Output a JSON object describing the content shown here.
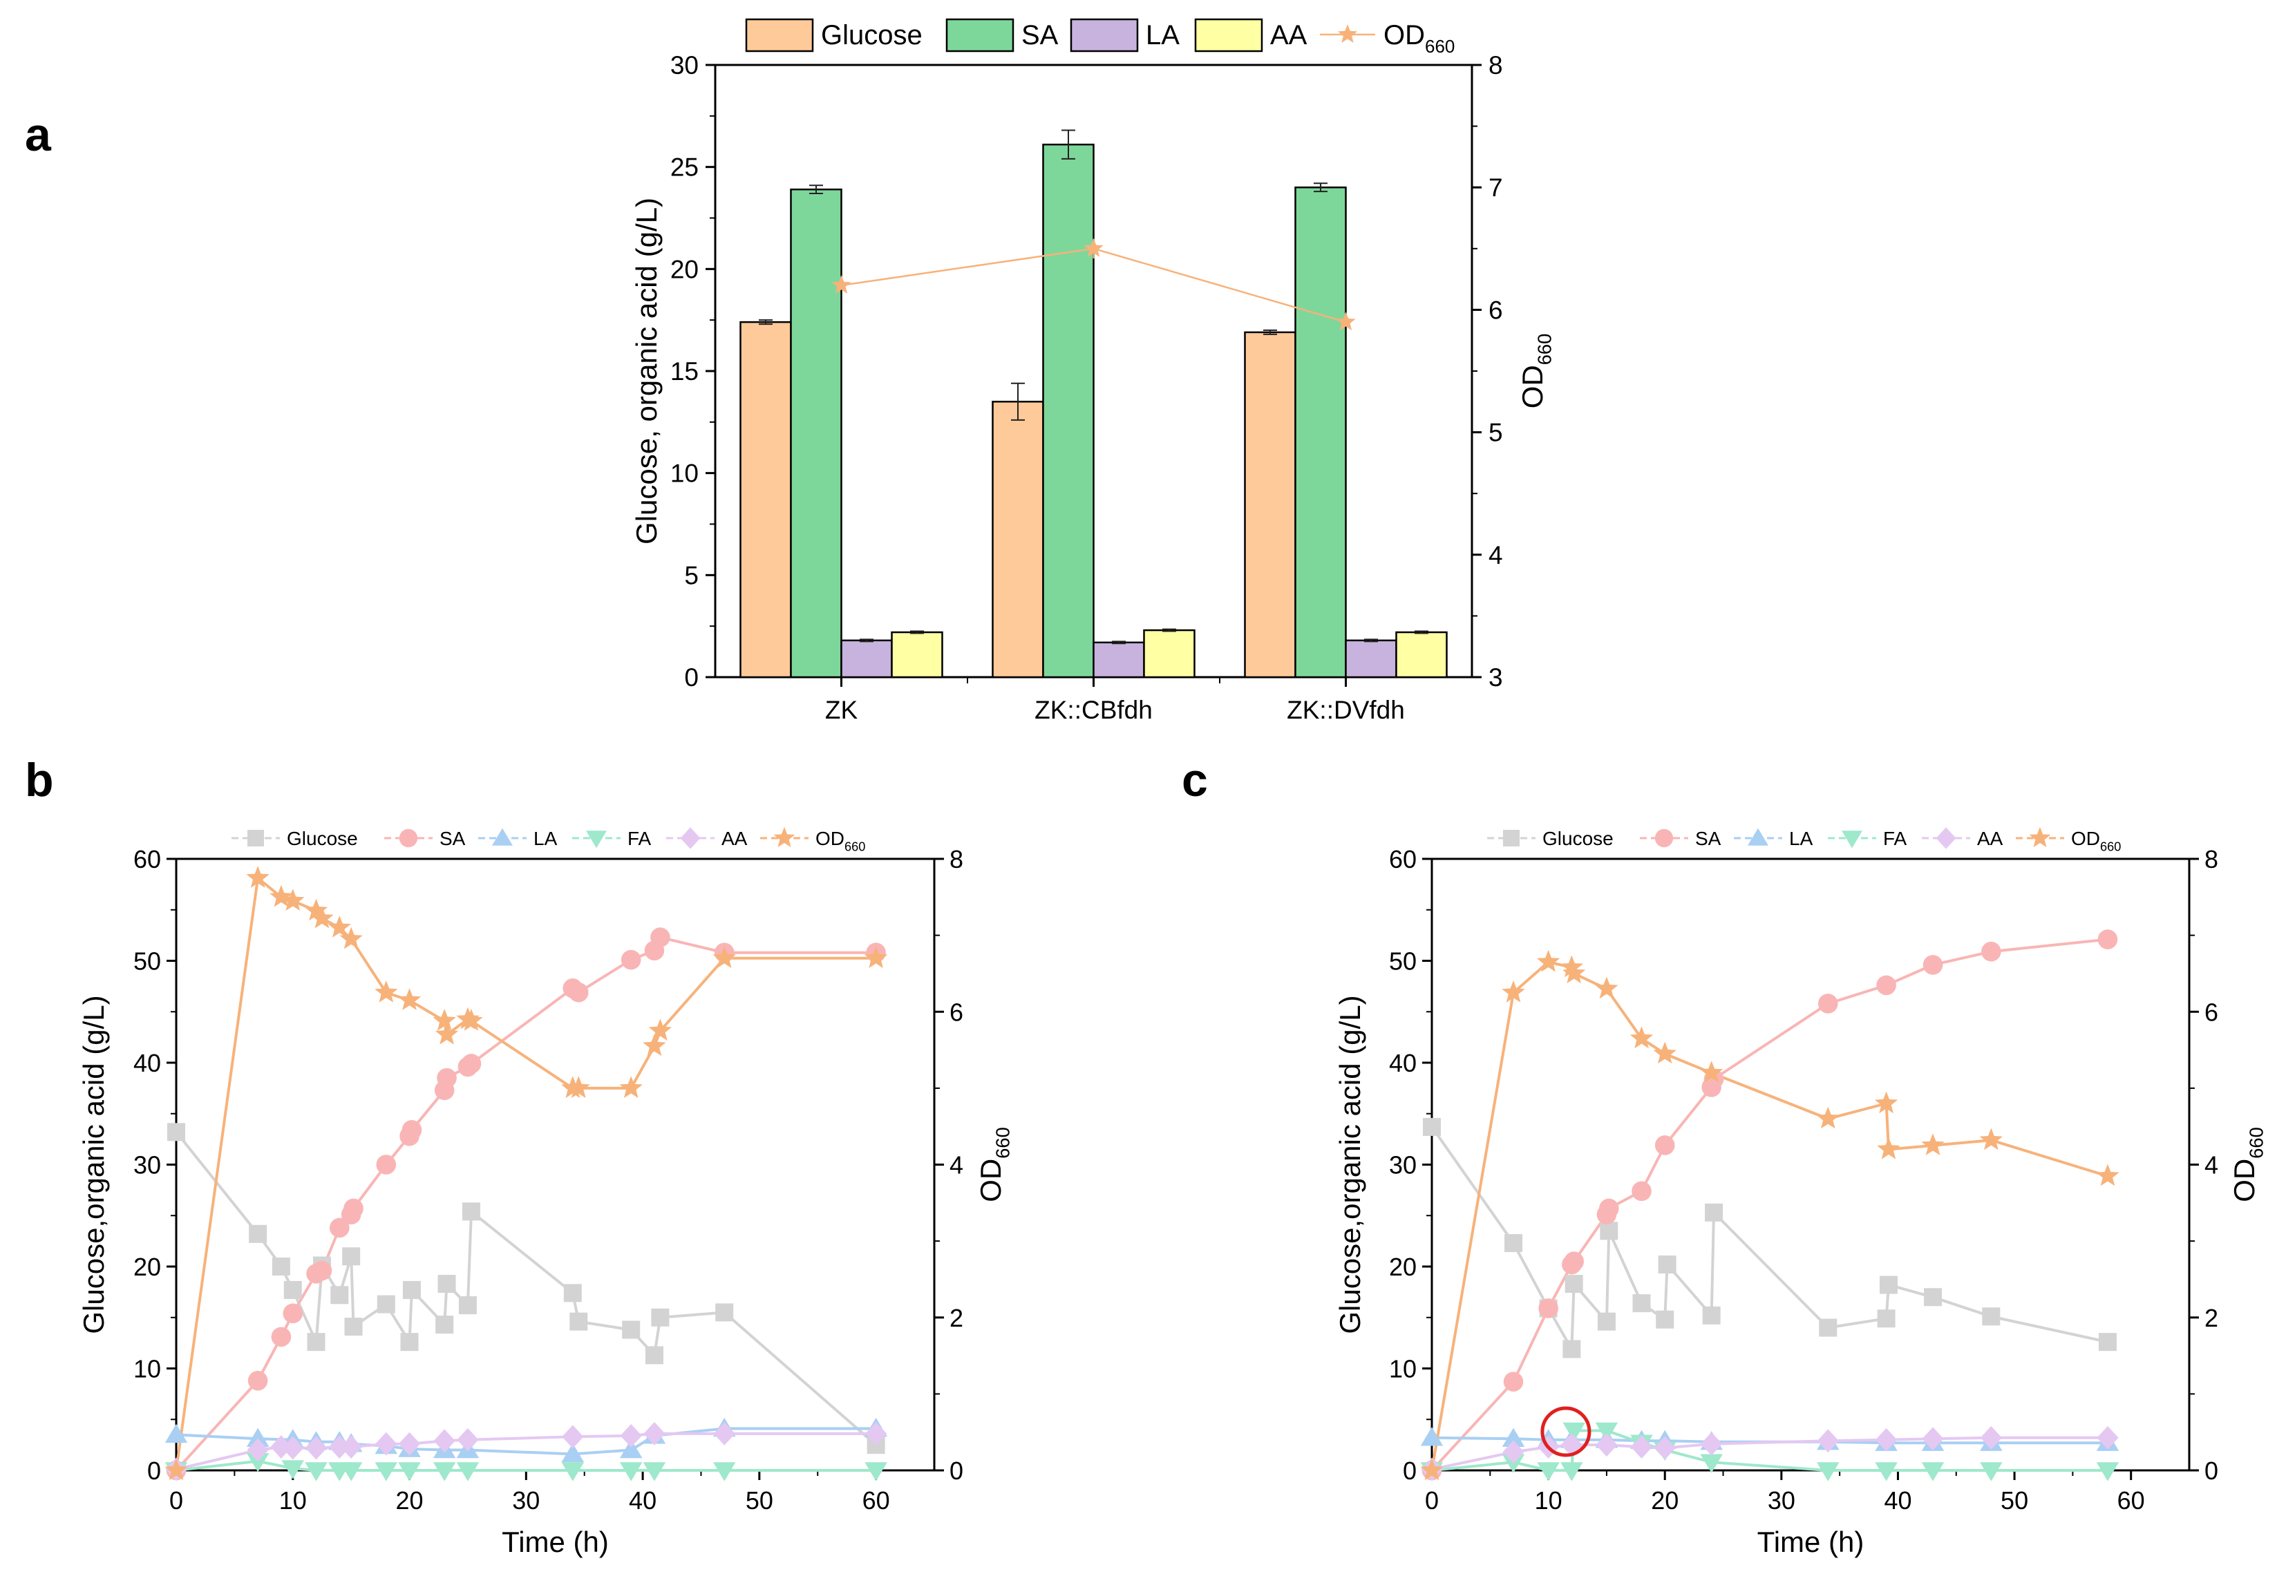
{
  "panels": [
    {
      "letter": "a"
    },
    {
      "letter": "b"
    },
    {
      "letter": "c"
    }
  ],
  "chart_data": [
    {
      "panel": "a",
      "type": "bar",
      "categories": [
        "ZK",
        "ZK::CBfdh",
        "ZK::DVfdh"
      ],
      "series": [
        {
          "name": "Glucose",
          "color": "#FFCA99",
          "values": [
            17.4,
            13.5,
            16.9
          ],
          "errors": [
            0.1,
            0.9,
            0.1
          ]
        },
        {
          "name": "SA",
          "color": "#7ED79A",
          "values": [
            23.9,
            26.1,
            24.0
          ],
          "errors": [
            0.2,
            0.7,
            0.2
          ]
        },
        {
          "name": "LA",
          "color": "#C7B3DD",
          "values": [
            1.8,
            1.7,
            1.8
          ],
          "errors": [
            0.05,
            0.05,
            0.05
          ]
        },
        {
          "name": "AA",
          "color": "#FFFFA3",
          "values": [
            2.2,
            2.3,
            2.2
          ],
          "errors": [
            0.05,
            0.05,
            0.05
          ]
        }
      ],
      "line_series": {
        "name": "OD660",
        "name_main": "OD",
        "name_sub": "660",
        "color": "#F7B27A",
        "values": [
          6.2,
          6.5,
          5.9
        ],
        "errors": [
          0.0,
          0.08,
          0.02
        ]
      },
      "ylabel": "Glucose, organic acid (g/L)",
      "y2label_main": "OD",
      "y2label_sub": "660",
      "ylim": [
        0,
        30
      ],
      "yticks": [
        "0",
        "5",
        "10",
        "15",
        "20",
        "25",
        "30"
      ],
      "y2lim": [
        3,
        8
      ],
      "y2ticks": [
        "3",
        "4",
        "5",
        "6",
        "7",
        "8"
      ],
      "legend": [
        "Glucose",
        "SA",
        "LA",
        "AA",
        "OD660"
      ],
      "legend_position": "top"
    },
    {
      "panel": "b",
      "type": "line",
      "xlabel": "Time (h)",
      "ylabel": "Glucose,organic acid (g/L)",
      "y2label_main": "OD",
      "y2label_sub": "660",
      "xlim": [
        0,
        65
      ],
      "xticks": [
        "0",
        "10",
        "20",
        "30",
        "40",
        "50",
        "60"
      ],
      "ylim": [
        0,
        60
      ],
      "yticks": [
        "0",
        "10",
        "20",
        "30",
        "40",
        "50",
        "60"
      ],
      "y2lim": [
        0,
        8
      ],
      "y2ticks": [
        "0",
        "2",
        "4",
        "6",
        "8"
      ],
      "legend_position": "top",
      "series": [
        {
          "name": "Glucose",
          "marker": "square",
          "color": "#D3D3D3",
          "x": [
            0,
            7,
            9,
            10,
            12,
            12.5,
            14,
            15,
            15.2,
            18,
            20,
            20.2,
            23,
            23.2,
            25,
            25.3,
            34,
            34.5,
            39,
            41,
            41.5,
            47,
            60
          ],
          "y": [
            33.2,
            23.2,
            20.0,
            17.7,
            12.6,
            20.1,
            17.2,
            21.0,
            14.1,
            16.3,
            12.6,
            17.7,
            14.3,
            18.3,
            16.2,
            25.4,
            17.4,
            14.6,
            13.8,
            11.3,
            15.0,
            15.5,
            2.5
          ]
        },
        {
          "name": "SA",
          "marker": "circle",
          "color": "#F9B5B5",
          "x": [
            0,
            7,
            9,
            10,
            12,
            12.5,
            14,
            15,
            15.2,
            18,
            20,
            20.2,
            23,
            23.2,
            25,
            25.3,
            34,
            34.5,
            39,
            41,
            41.5,
            47,
            60
          ],
          "y": [
            0,
            8.8,
            13.1,
            15.4,
            19.3,
            19.6,
            23.8,
            25.1,
            25.7,
            30.0,
            32.8,
            33.4,
            37.3,
            38.5,
            39.6,
            39.9,
            47.3,
            46.9,
            50.1,
            51.0,
            52.3,
            50.8,
            50.8
          ]
        },
        {
          "name": "LA",
          "marker": "triangle-up",
          "color": "#A9CFF3",
          "x": [
            0,
            7,
            10,
            12,
            14,
            15,
            18,
            20,
            23,
            25,
            34,
            39,
            41,
            47,
            60
          ],
          "y": [
            3.5,
            3.1,
            3.0,
            2.8,
            2.8,
            2.6,
            2.4,
            2.1,
            2.0,
            2.0,
            1.6,
            2.0,
            3.4,
            4.1,
            4.1
          ]
        },
        {
          "name": "FA",
          "marker": "triangle-down",
          "color": "#9EE8CC",
          "x": [
            0,
            7,
            10,
            12,
            14,
            15,
            18,
            20,
            23,
            25,
            34,
            39,
            41,
            47,
            60
          ],
          "y": [
            0,
            0.9,
            0.2,
            0,
            0,
            0,
            0,
            0,
            0,
            0,
            0,
            0,
            0,
            0,
            0
          ]
        },
        {
          "name": "AA",
          "marker": "diamond",
          "color": "#E4C8F2",
          "x": [
            0,
            7,
            9,
            10,
            12,
            14,
            15,
            18,
            20,
            23,
            25,
            34,
            39,
            41,
            47,
            60
          ],
          "y": [
            0.1,
            2.0,
            2.3,
            2.2,
            2.2,
            2.3,
            2.3,
            2.6,
            2.6,
            2.9,
            3.0,
            3.3,
            3.4,
            3.6,
            3.6,
            3.6
          ]
        },
        {
          "name": "OD660",
          "marker": "star",
          "color": "#F7B27A",
          "axis": "right",
          "x": [
            0,
            7,
            9,
            10,
            12,
            12.5,
            14,
            15,
            18,
            20,
            23,
            23.2,
            25,
            25.3,
            34,
            34.5,
            39,
            41,
            41.5,
            47,
            60
          ],
          "y": [
            0,
            7.75,
            7.5,
            7.45,
            7.32,
            7.22,
            7.1,
            6.95,
            6.25,
            6.15,
            5.88,
            5.7,
            5.9,
            5.88,
            5.0,
            5.0,
            5.0,
            5.55,
            5.75,
            6.7,
            6.7
          ]
        }
      ]
    },
    {
      "panel": "c",
      "type": "line",
      "xlabel": "Time (h)",
      "ylabel": "Glucose,organic acid (g/L)",
      "y2label_main": "OD",
      "y2label_sub": "660",
      "xlim": [
        0,
        65
      ],
      "xticks": [
        "0",
        "10",
        "20",
        "30",
        "40",
        "50",
        "60"
      ],
      "ylim": [
        0,
        60
      ],
      "yticks": [
        "0",
        "10",
        "20",
        "30",
        "40",
        "50",
        "60"
      ],
      "y2lim": [
        0,
        8
      ],
      "y2ticks": [
        "0",
        "2",
        "4",
        "6",
        "8"
      ],
      "legend_position": "top",
      "annotation": {
        "type": "circle",
        "x": 11.5,
        "y": 3.8
      },
      "series": [
        {
          "name": "Glucose",
          "marker": "square",
          "color": "#D3D3D3",
          "x": [
            0,
            7,
            10,
            12,
            12.2,
            15,
            15.2,
            18,
            20,
            20.2,
            24,
            24.2,
            34,
            39,
            39.2,
            43,
            48,
            58
          ],
          "y": [
            33.7,
            22.3,
            15.9,
            11.9,
            18.3,
            14.6,
            23.5,
            16.4,
            14.8,
            20.2,
            15.2,
            25.3,
            14.0,
            14.9,
            18.2,
            17.0,
            15.1,
            12.6
          ]
        },
        {
          "name": "SA",
          "marker": "circle",
          "color": "#F9B5B5",
          "x": [
            0,
            7,
            10,
            12,
            12.2,
            15,
            15.2,
            18,
            20,
            24,
            24.2,
            34,
            39,
            43,
            48,
            58
          ],
          "y": [
            0,
            8.7,
            15.9,
            20.2,
            20.5,
            25.1,
            25.7,
            27.4,
            31.9,
            37.6,
            38.4,
            45.8,
            47.6,
            49.6,
            50.9,
            52.1
          ]
        },
        {
          "name": "LA",
          "marker": "triangle-up",
          "color": "#A9CFF3",
          "x": [
            0,
            7,
            10,
            12,
            15,
            18,
            20,
            24,
            34,
            39,
            43,
            48,
            58
          ],
          "y": [
            3.2,
            3.1,
            3.0,
            3.0,
            3.0,
            2.9,
            2.9,
            2.8,
            2.8,
            2.7,
            2.7,
            2.7,
            2.7
          ]
        },
        {
          "name": "FA",
          "marker": "triangle-down",
          "color": "#9EE8CC",
          "x": [
            0,
            7,
            10,
            12,
            12.2,
            15,
            18,
            20,
            24,
            34,
            39,
            43,
            48,
            58
          ],
          "y": [
            0,
            0.8,
            0,
            0,
            3.9,
            3.9,
            2.7,
            2.0,
            0.8,
            0,
            0,
            0,
            0,
            0
          ]
        },
        {
          "name": "AA",
          "marker": "diamond",
          "color": "#E4C8F2",
          "x": [
            0,
            7,
            10,
            12,
            15,
            18,
            20,
            24,
            34,
            39,
            43,
            48,
            58
          ],
          "y": [
            0.1,
            1.8,
            2.3,
            2.5,
            2.5,
            2.3,
            2.2,
            2.6,
            2.9,
            3.0,
            3.1,
            3.2,
            3.2
          ]
        },
        {
          "name": "OD660",
          "marker": "star",
          "color": "#F7B27A",
          "axis": "right",
          "x": [
            0,
            7,
            10,
            12,
            12.2,
            15,
            18,
            20,
            24,
            34,
            39,
            39.2,
            43,
            48,
            58
          ],
          "y": [
            0,
            6.25,
            6.65,
            6.58,
            6.5,
            6.3,
            5.65,
            5.45,
            5.2,
            4.6,
            4.8,
            4.2,
            4.25,
            4.32,
            3.85
          ]
        }
      ]
    }
  ],
  "colors": {
    "glucose_bar": "#FFCA99",
    "sa_bar": "#7ED79A",
    "la_bar": "#C7B3DD",
    "aa_bar": "#FFFFA3",
    "od": "#F7B27A",
    "annotation": "#E02020"
  }
}
